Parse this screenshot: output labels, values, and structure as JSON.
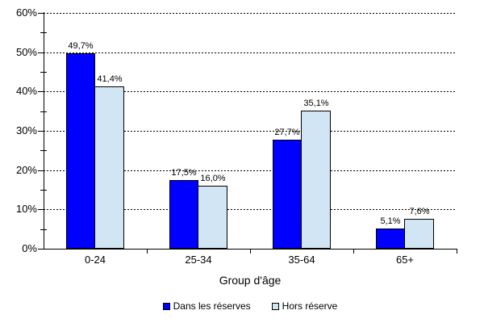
{
  "chart_data": {
    "type": "bar",
    "title": "",
    "xlabel": "Group d'âge",
    "ylabel": "",
    "categories": [
      "0-24",
      "25-34",
      "35-64",
      "65+"
    ],
    "series": [
      {
        "name": "Dans les réserves",
        "values": [
          49.7,
          17.5,
          27.7,
          5.1
        ],
        "labels": [
          "49,7%",
          "17,5%",
          "27,7%",
          "5,1%"
        ],
        "color": "#0000ff",
        "pattern": "solid"
      },
      {
        "name": "Hors réserve",
        "values": [
          41.4,
          16.0,
          35.1,
          7.6
        ],
        "labels": [
          "41,4%",
          "16,0%",
          "35,1%",
          "7,6%"
        ],
        "color": "#a3cce9",
        "pattern": "checker"
      }
    ],
    "ylim": [
      0,
      60
    ],
    "ytick_step": 10,
    "ytick_labels": [
      "0%",
      "10%",
      "20%",
      "30%",
      "40%",
      "50%",
      "60%"
    ],
    "grid": "horizontal-dashed",
    "legend_position": "bottom"
  },
  "colors": {
    "bar_dark": "#0000ff",
    "bar_light_pattern": "#a3cce9",
    "axis": "#000000",
    "background": "#ffffff",
    "text": "#000000"
  }
}
